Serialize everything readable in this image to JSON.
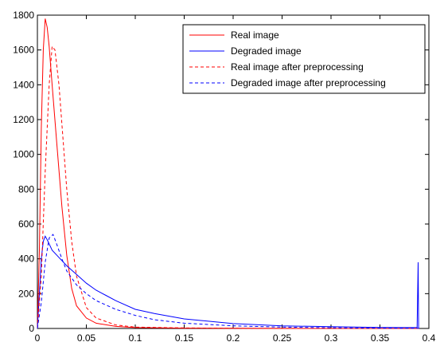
{
  "chart_data": {
    "type": "line",
    "xlim": [
      0,
      0.4
    ],
    "ylim": [
      0,
      1800
    ],
    "x_ticks": [
      0,
      0.05,
      0.1,
      0.15,
      0.2,
      0.25,
      0.3,
      0.35,
      0.4
    ],
    "x_tick_labels": [
      "0",
      "0.05",
      "0.1",
      "0.15",
      "0.2",
      "0.25",
      "0.3",
      "0.35",
      "0.4"
    ],
    "y_ticks": [
      0,
      200,
      400,
      600,
      800,
      1000,
      1200,
      1400,
      1600,
      1800
    ],
    "y_tick_labels": [
      "0",
      "200",
      "400",
      "600",
      "800",
      "1000",
      "1200",
      "1400",
      "1600",
      "1800"
    ],
    "grid": false,
    "legend_position": "top-right",
    "series": [
      {
        "name": "Real image",
        "color": "#ff0000",
        "dash": "solid",
        "points": [
          [
            0,
            0
          ],
          [
            0.002,
            450
          ],
          [
            0.004,
            1150
          ],
          [
            0.006,
            1600
          ],
          [
            0.008,
            1780
          ],
          [
            0.01,
            1730
          ],
          [
            0.012,
            1620
          ],
          [
            0.015,
            1400
          ],
          [
            0.02,
            1050
          ],
          [
            0.025,
            700
          ],
          [
            0.03,
            420
          ],
          [
            0.035,
            230
          ],
          [
            0.04,
            130
          ],
          [
            0.05,
            60
          ],
          [
            0.06,
            30
          ],
          [
            0.08,
            12
          ],
          [
            0.1,
            5
          ],
          [
            0.15,
            2
          ],
          [
            0.2,
            1
          ],
          [
            0.3,
            0
          ],
          [
            0.39,
            0
          ]
        ]
      },
      {
        "name": "Degraded image",
        "color": "#0000ff",
        "dash": "solid",
        "points": [
          [
            0,
            0
          ],
          [
            0.002,
            200
          ],
          [
            0.004,
            400
          ],
          [
            0.006,
            500
          ],
          [
            0.008,
            530
          ],
          [
            0.01,
            510
          ],
          [
            0.015,
            450
          ],
          [
            0.02,
            420
          ],
          [
            0.03,
            360
          ],
          [
            0.04,
            310
          ],
          [
            0.05,
            260
          ],
          [
            0.06,
            220
          ],
          [
            0.07,
            190
          ],
          [
            0.08,
            160
          ],
          [
            0.1,
            110
          ],
          [
            0.12,
            85
          ],
          [
            0.15,
            55
          ],
          [
            0.2,
            28
          ],
          [
            0.25,
            15
          ],
          [
            0.3,
            10
          ],
          [
            0.35,
            6
          ],
          [
            0.388,
            5
          ],
          [
            0.389,
            380
          ],
          [
            0.3895,
            0
          ]
        ]
      },
      {
        "name": "Real image after preprocessing",
        "color": "#ff0000",
        "dash": "dashed",
        "points": [
          [
            0,
            0
          ],
          [
            0.004,
            300
          ],
          [
            0.008,
            900
          ],
          [
            0.012,
            1400
          ],
          [
            0.015,
            1620
          ],
          [
            0.018,
            1600
          ],
          [
            0.022,
            1400
          ],
          [
            0.026,
            1100
          ],
          [
            0.03,
            800
          ],
          [
            0.035,
            500
          ],
          [
            0.04,
            300
          ],
          [
            0.05,
            120
          ],
          [
            0.06,
            60
          ],
          [
            0.08,
            20
          ],
          [
            0.1,
            8
          ],
          [
            0.15,
            3
          ],
          [
            0.2,
            1
          ],
          [
            0.3,
            0
          ],
          [
            0.39,
            0
          ]
        ]
      },
      {
        "name": "Degraded image after preprocessing",
        "color": "#0000ff",
        "dash": "dashed",
        "points": [
          [
            0,
            0
          ],
          [
            0.004,
            150
          ],
          [
            0.008,
            380
          ],
          [
            0.012,
            520
          ],
          [
            0.016,
            540
          ],
          [
            0.02,
            480
          ],
          [
            0.025,
            400
          ],
          [
            0.03,
            330
          ],
          [
            0.04,
            250
          ],
          [
            0.05,
            200
          ],
          [
            0.06,
            160
          ],
          [
            0.08,
            110
          ],
          [
            0.1,
            75
          ],
          [
            0.12,
            50
          ],
          [
            0.15,
            30
          ],
          [
            0.2,
            15
          ],
          [
            0.25,
            8
          ],
          [
            0.3,
            4
          ],
          [
            0.35,
            2
          ],
          [
            0.39,
            1
          ]
        ]
      }
    ]
  }
}
